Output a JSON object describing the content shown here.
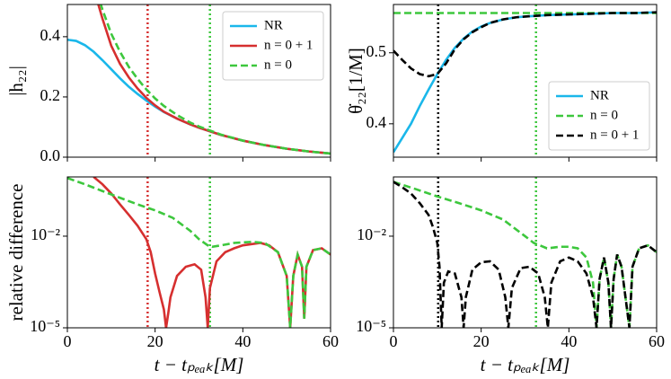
{
  "chart_data": [
    {
      "type": "line",
      "ylabel": "|h₂₂|",
      "xlim": [
        0,
        60
      ],
      "ylim": [
        0,
        0.507
      ],
      "xticks": [
        0,
        20,
        40,
        60
      ],
      "yticks": [
        {
          "value": 0,
          "label": "0.0"
        },
        0.2,
        0.4
      ],
      "legend": "upper right",
      "series": [
        {
          "name": "NR",
          "color": "#1ab7ea",
          "style": "solid",
          "x": [
            0,
            2,
            4,
            6,
            8,
            10,
            12,
            14,
            16,
            18,
            20,
            22,
            25,
            28,
            30,
            35,
            40,
            45,
            50,
            55,
            60
          ],
          "values": [
            0.39,
            0.386,
            0.372,
            0.35,
            0.322,
            0.292,
            0.262,
            0.234,
            0.21,
            0.188,
            0.168,
            0.15,
            0.128,
            0.109,
            0.098,
            0.074,
            0.055,
            0.04,
            0.028,
            0.019,
            0.012
          ]
        },
        {
          "name": "n = 0 + 1",
          "color": "#d62f2f",
          "style": "solid",
          "x": [
            6,
            8,
            10,
            12,
            14,
            16,
            18,
            20,
            22,
            25,
            28,
            30,
            35,
            40,
            45,
            50,
            55,
            60
          ],
          "values": [
            0.56,
            0.46,
            0.37,
            0.31,
            0.265,
            0.228,
            0.197,
            0.172,
            0.151,
            0.128,
            0.109,
            0.098,
            0.074,
            0.055,
            0.04,
            0.028,
            0.019,
            0.012
          ]
        },
        {
          "name": "n = 0",
          "color": "#3dc73d",
          "style": "dashed",
          "x": [
            6,
            8,
            10,
            12,
            14,
            16,
            18,
            20,
            22,
            25,
            28,
            30,
            35,
            40,
            45,
            50,
            55,
            60
          ],
          "values": [
            0.58,
            0.49,
            0.41,
            0.35,
            0.3,
            0.26,
            0.225,
            0.195,
            0.17,
            0.14,
            0.115,
            0.102,
            0.075,
            0.055,
            0.04,
            0.028,
            0.019,
            0.012
          ]
        }
      ],
      "vlines": [
        {
          "x": 18.3,
          "color": "#d62f2f"
        },
        {
          "x": 32.5,
          "color": "#3dc73d"
        }
      ]
    },
    {
      "type": "line",
      "ylabel": "θ̇₂₂[1/M]",
      "xlim": [
        0,
        60
      ],
      "ylim": [
        0.353,
        0.568
      ],
      "xticks": [
        0,
        20,
        40,
        60
      ],
      "yticks": [
        0.4,
        0.5
      ],
      "legend": "lower right",
      "series": [
        {
          "name": "NR",
          "color": "#1ab7ea",
          "style": "solid",
          "x": [
            0,
            2,
            4,
            6,
            8,
            10,
            12,
            14,
            16,
            18,
            20,
            22,
            25,
            28,
            30,
            35,
            40,
            45,
            50,
            55,
            60
          ],
          "values": [
            0.36,
            0.38,
            0.4,
            0.425,
            0.448,
            0.47,
            0.49,
            0.507,
            0.52,
            0.53,
            0.537,
            0.542,
            0.547,
            0.55,
            0.551,
            0.553,
            0.554,
            0.555,
            0.556,
            0.556,
            0.557
          ]
        },
        {
          "name": "n = 0",
          "color": "#3dc73d",
          "style": "dashed",
          "x": [
            0,
            60
          ],
          "values": [
            0.556,
            0.556
          ]
        },
        {
          "name": "n = 0 + 1",
          "color": "#000000",
          "style": "dashed",
          "x": [
            0,
            2,
            4,
            6,
            8,
            10,
            12,
            14,
            16,
            18,
            20,
            22,
            25,
            28,
            30,
            35,
            40,
            45,
            50,
            55,
            60
          ],
          "values": [
            0.503,
            0.49,
            0.478,
            0.47,
            0.467,
            0.47,
            0.485,
            0.505,
            0.519,
            0.529,
            0.536,
            0.542,
            0.547,
            0.55,
            0.551,
            0.553,
            0.554,
            0.555,
            0.556,
            0.556,
            0.557
          ]
        }
      ],
      "vlines": [
        {
          "x": 10.2,
          "color": "#000000"
        },
        {
          "x": 32.5,
          "color": "#3dc73d"
        }
      ]
    },
    {
      "type": "line",
      "ylabel": "relative difference",
      "xlabel": "t − tₚₑₐₖ[M]",
      "xlim": [
        0,
        60
      ],
      "ylim": [
        1e-05,
        0.87
      ],
      "ylog": true,
      "xticks": [
        0,
        20,
        40,
        60
      ],
      "yticks": [
        {
          "value": 0.01,
          "label": "10⁻²"
        },
        {
          "value": 1e-05,
          "label": "10⁻⁵"
        }
      ],
      "series": [
        {
          "color": "#d62f2f",
          "style": "solid",
          "x": [
            6,
            8,
            10,
            12,
            14,
            16,
            18,
            19,
            20,
            21,
            22,
            22.5,
            23,
            23.5,
            25,
            27,
            29,
            30.5,
            31.5,
            32,
            32.5,
            34,
            36,
            38,
            40,
            42,
            44,
            46,
            48,
            50,
            50.8,
            51.5,
            52.5,
            53.5,
            54,
            54.5,
            56,
            58,
            60
          ],
          "values": [
            0.87,
            0.5,
            0.25,
            0.11,
            0.05,
            0.022,
            0.008,
            0.003,
            0.0006,
            0.00015,
            4e-05,
            1e-05,
            3e-05,
            0.0001,
            0.0005,
            0.001,
            0.0012,
            0.0008,
            0.0001,
            1e-05,
            0.0002,
            0.0015,
            0.003,
            0.004,
            0.005,
            0.0055,
            0.006,
            0.005,
            0.003,
            0.0005,
            1e-05,
            0.0005,
            0.0025,
            0.001,
            2e-05,
            0.001,
            0.0035,
            0.004,
            0.0025
          ]
        },
        {
          "color": "#3dc73d",
          "style": "dashed",
          "x": [
            0,
            4,
            8,
            12,
            16,
            20,
            24,
            28,
            30,
            32,
            33,
            35,
            38,
            42,
            45,
            48,
            50,
            50.8,
            51.5,
            52.5,
            53.5,
            54,
            54.5,
            56,
            58,
            60
          ],
          "values": [
            0.8,
            0.5,
            0.3,
            0.18,
            0.11,
            0.07,
            0.04,
            0.015,
            0.008,
            0.005,
            0.0045,
            0.005,
            0.006,
            0.0065,
            0.006,
            0.003,
            0.0005,
            1e-05,
            0.0005,
            0.0025,
            0.001,
            2e-05,
            0.001,
            0.0035,
            0.004,
            0.0025
          ]
        }
      ],
      "vlines": [
        {
          "x": 18.3,
          "color": "#d62f2f"
        },
        {
          "x": 32.5,
          "color": "#3dc73d"
        }
      ]
    },
    {
      "type": "line",
      "xlabel": "t − tₚₑₐₖ[M]",
      "xlim": [
        0,
        60
      ],
      "ylim": [
        1e-05,
        0.87
      ],
      "ylog": true,
      "xticks": [
        0,
        20,
        40,
        60
      ],
      "yticks": [
        {
          "value": 0.01,
          "label": "10⁻²"
        },
        {
          "value": 1e-05,
          "label": "10⁻⁵"
        }
      ],
      "series": [
        {
          "color": "#3dc73d",
          "style": "dashed",
          "x": [
            0,
            5,
            10,
            15,
            20,
            25,
            30,
            32,
            35,
            38,
            40,
            42,
            44,
            45.5,
            46.3,
            47,
            48,
            49,
            49.6,
            50.2,
            51,
            52,
            53.8,
            54.5,
            56,
            58,
            60
          ],
          "values": [
            0.6,
            0.35,
            0.2,
            0.12,
            0.07,
            0.035,
            0.01,
            0.006,
            0.004,
            0.0045,
            0.0045,
            0.004,
            0.002,
            0.0003,
            1e-05,
            0.0004,
            0.002,
            0.0003,
            1e-05,
            0.0004,
            0.0025,
            0.001,
            1e-05,
            0.001,
            0.004,
            0.005,
            0.003
          ]
        },
        {
          "color": "#000000",
          "style": "dashed",
          "x": [
            0,
            2,
            4,
            6,
            8,
            9,
            10,
            10.5,
            11,
            11.5,
            12.5,
            14,
            15.5,
            16,
            16.5,
            18,
            20,
            22,
            24,
            25.5,
            26.2,
            27,
            29,
            31,
            33,
            34.5,
            35.2,
            36,
            38,
            40,
            42,
            44,
            45.5,
            46.3,
            47,
            48,
            49,
            49.6,
            50.2,
            51,
            52,
            53.8,
            54.5,
            56,
            58,
            60
          ],
          "values": [
            0.6,
            0.4,
            0.25,
            0.12,
            0.05,
            0.02,
            0.006,
            0.001,
            1e-05,
            0.0003,
            0.0007,
            0.0006,
            0.0001,
            1e-05,
            0.0001,
            0.0008,
            0.0014,
            0.0015,
            0.0008,
            0.0001,
            1e-05,
            0.0002,
            0.0009,
            0.001,
            0.0006,
            0.0001,
            1e-05,
            0.0003,
            0.0015,
            0.002,
            0.0015,
            0.0006,
            0.0001,
            1e-05,
            0.0004,
            0.002,
            0.0003,
            1e-05,
            0.0004,
            0.0025,
            0.001,
            1e-05,
            0.001,
            0.004,
            0.005,
            0.003
          ]
        }
      ],
      "vlines": [
        {
          "x": 10.2,
          "color": "#000000"
        },
        {
          "x": 32.5,
          "color": "#3dc73d"
        }
      ]
    }
  ]
}
